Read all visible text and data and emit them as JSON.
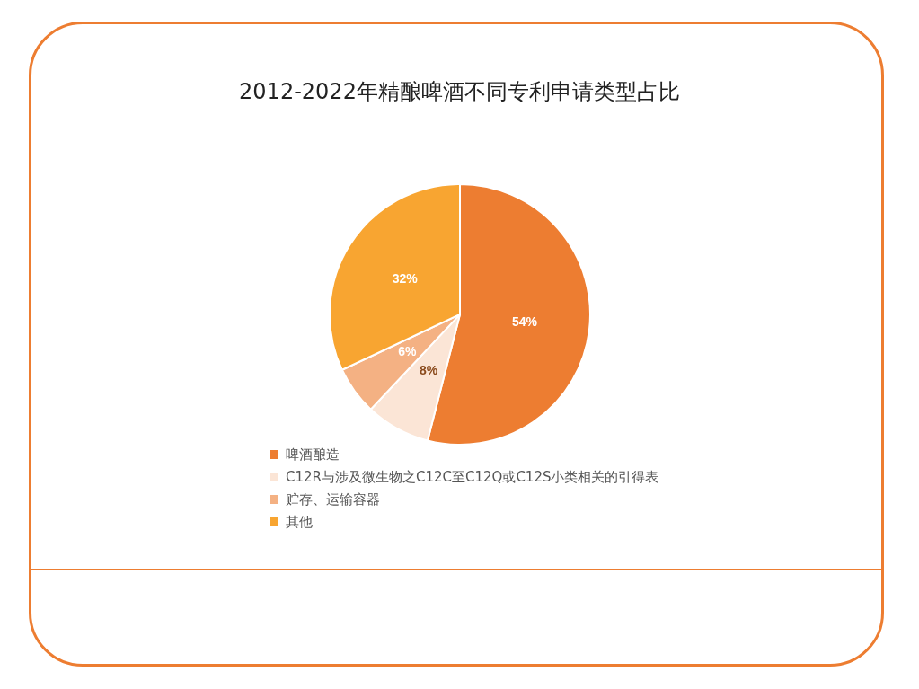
{
  "chart_data": {
    "type": "pie",
    "title": "2012-2022年精酿啤酒不同专利申请类型占比",
    "categories": [
      "啤酒酿造",
      "C12R与涉及微生物之C12C至C12Q或C12S小类相关的引得表",
      "贮存、运输容器",
      "其他"
    ],
    "values": [
      54,
      8,
      6,
      32
    ],
    "colors": [
      "#ed7d31",
      "#fbe5d6",
      "#f4b183",
      "#f8a531"
    ],
    "value_labels": [
      "54%",
      "8%",
      "6%",
      "32%"
    ],
    "legend": "bottom"
  }
}
